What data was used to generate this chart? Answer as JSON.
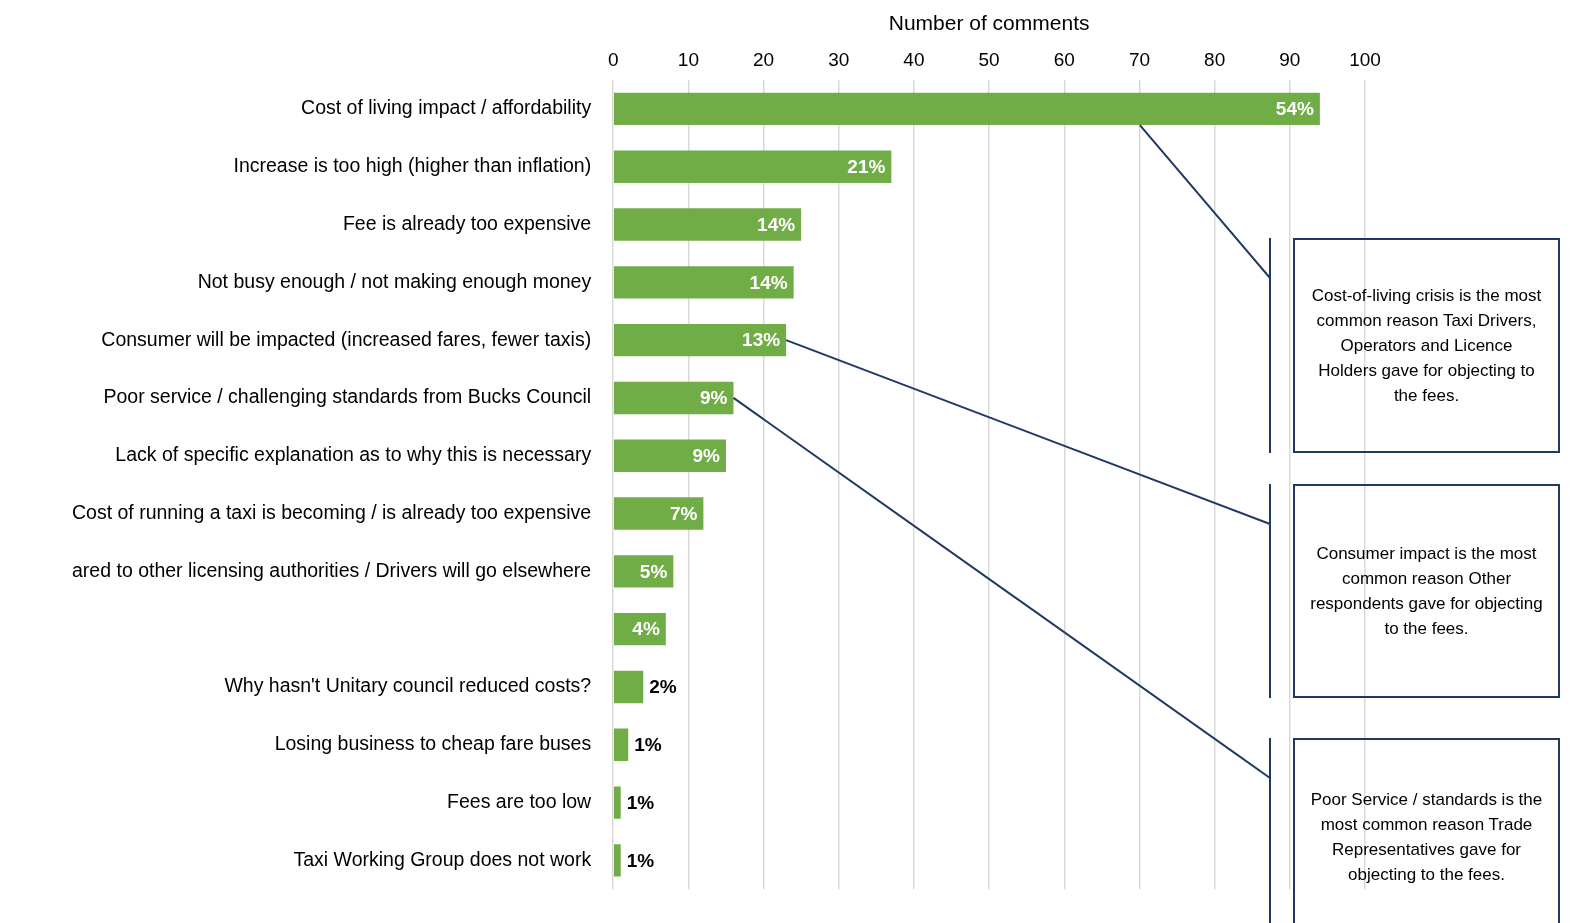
{
  "chart_data": {
    "type": "bar",
    "orientation": "horizontal",
    "xlabel": "Number of comments",
    "categories": [
      "Cost of living impact / affordability",
      "Increase is too high (higher than inflation)",
      "Fee is already too expensive",
      "Not busy enough / not making enough money",
      "Consumer will be impacted (increased fares, fewer taxis)",
      "Poor service / challenging standards from Bucks Council",
      "Lack of specific explanation as to why this is necessary",
      "Cost of running a taxi is becoming / is already too expensive",
      "ared to other licensing authorities / Drivers will go elsewhere",
      null,
      "Why hasn't Unitary council reduced costs?",
      "Losing business to cheap fare buses",
      "Fees are too low",
      "Taxi Working Group does not work"
    ],
    "values": [
      94,
      37,
      25,
      24,
      23,
      16,
      15,
      12,
      8,
      7,
      4,
      2,
      1,
      1
    ],
    "color": "#70ad47",
    "xlim": [
      0,
      100
    ],
    "xticks": [
      0,
      10,
      20,
      30,
      40,
      50,
      60,
      70,
      80,
      90,
      100
    ],
    "grid": "x",
    "legend": false,
    "annotations": [
      {
        "text": "54%",
        "x": 94,
        "y": "Cost of living impact / affordability"
      },
      {
        "text": "21%",
        "x": 37,
        "y": "Increase is too high (higher than inflation)"
      },
      {
        "text": "14%",
        "x": 25,
        "y": "Fee is already too expensive"
      },
      {
        "text": "14%",
        "x": 24,
        "y": "Not busy enough / not making enough money"
      },
      {
        "text": "13%",
        "x": 23,
        "y": "Consumer will be impacted (increased fares, fewer taxis)"
      },
      {
        "text": "9%",
        "x": 16,
        "y": "Poor service / challenging standards from Bucks Council"
      },
      {
        "text": "9%",
        "x": 15,
        "y": "Lack of specific explanation as to why this is necessary"
      },
      {
        "text": "7%",
        "x": 12,
        "y": "Cost of running a taxi is becoming / is already too expensive"
      },
      {
        "text": "5%",
        "x": 8,
        "y": "ared to other licensing authorities / Drivers will go elsewhere"
      },
      {
        "text": "4%",
        "x": 7
      },
      {
        "text": "2%",
        "x": 4,
        "y": "Why hasn't Unitary council reduced costs?"
      },
      {
        "text": "1%",
        "x": 2,
        "y": "Losing business to cheap fare buses"
      },
      {
        "text": "1%",
        "x": 1,
        "y": "Fees are too low"
      },
      {
        "text": "1%",
        "x": 1,
        "y": "Taxi Working Group does not work"
      },
      "Cost-of-living crisis is the most common reason Taxi Drivers, Operators and Licence Holders gave for objecting to the fees.",
      "Consumer impact is the most common reason Other respondents gave for objecting to the fees.",
      "Poor Service / standards is the most common reason Trade Representatives gave for objecting to the fees."
    ]
  }
}
